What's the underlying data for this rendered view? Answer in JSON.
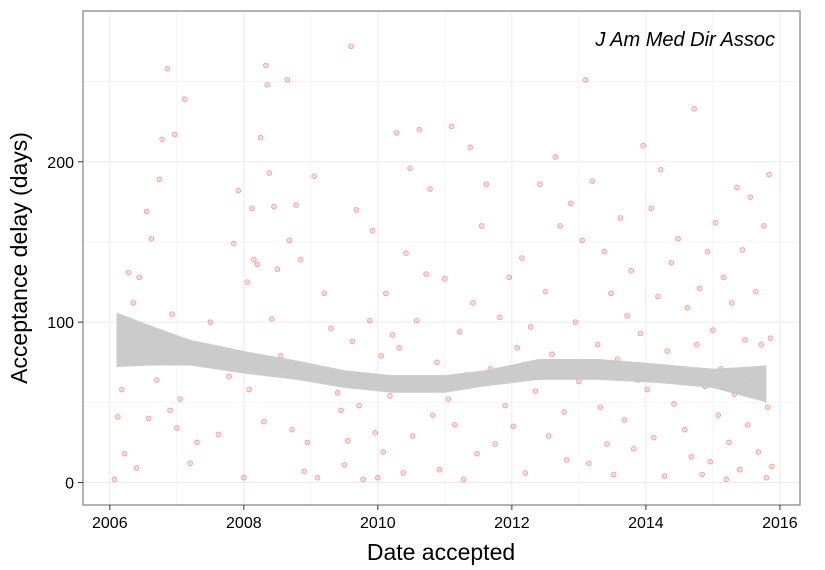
{
  "chart_data": {
    "type": "scatter",
    "annotation": "J Am Med Dir Assoc",
    "xlabel": "Date accepted",
    "ylabel": "Acceptance delay (days)",
    "xlim": [
      2005.6,
      2016.3
    ],
    "ylim": [
      -14,
      294
    ],
    "x_ticks": [
      2006,
      2008,
      2010,
      2012,
      2014,
      2016
    ],
    "x_tick_labels": [
      "2006",
      "2008",
      "2010",
      "2012",
      "2014",
      "2016"
    ],
    "y_ticks": [
      0,
      100,
      200
    ],
    "y_tick_labels": [
      "0",
      "100",
      "200"
    ],
    "grid": true,
    "legend": "none",
    "point_color": "#e8463d",
    "point_opacity": 0.2,
    "band_color": "#c8c8c8",
    "smooth_band": {
      "x": [
        2006.1,
        2006.6,
        2007.2,
        2008.0,
        2008.8,
        2009.5,
        2010.2,
        2011.0,
        2011.6,
        2012.4,
        2013.3,
        2014.2,
        2015.0,
        2015.8
      ],
      "lower": [
        72,
        73,
        73,
        68,
        64,
        59,
        56,
        56,
        60,
        64,
        64,
        62,
        59,
        50
      ],
      "upper": [
        106,
        98,
        89,
        82,
        76,
        70,
        67,
        67,
        70,
        77,
        77,
        74,
        71,
        73
      ]
    },
    "points": [
      [
        2006.07,
        2
      ],
      [
        2006.12,
        41
      ],
      [
        2006.18,
        58
      ],
      [
        2006.22,
        18
      ],
      [
        2006.28,
        131
      ],
      [
        2006.35,
        112
      ],
      [
        2006.4,
        9
      ],
      [
        2006.44,
        128
      ],
      [
        2006.48,
        81
      ],
      [
        2006.55,
        169
      ],
      [
        2006.58,
        40
      ],
      [
        2006.62,
        152
      ],
      [
        2006.66,
        94
      ],
      [
        2006.7,
        64
      ],
      [
        2006.74,
        189
      ],
      [
        2006.78,
        214
      ],
      [
        2006.82,
        76
      ],
      [
        2006.86,
        258
      ],
      [
        2006.9,
        45
      ],
      [
        2006.93,
        105
      ],
      [
        2006.97,
        217
      ],
      [
        2007.0,
        34
      ],
      [
        2007.05,
        52
      ],
      [
        2007.12,
        239
      ],
      [
        2007.2,
        12
      ],
      [
        2007.3,
        25
      ],
      [
        2007.5,
        100
      ],
      [
        2007.62,
        30
      ],
      [
        2007.78,
        66
      ],
      [
        2007.85,
        149
      ],
      [
        2007.92,
        182
      ],
      [
        2008.0,
        3
      ],
      [
        2008.05,
        125
      ],
      [
        2008.08,
        58
      ],
      [
        2008.12,
        171
      ],
      [
        2008.15,
        139
      ],
      [
        2008.2,
        136
      ],
      [
        2008.25,
        215
      ],
      [
        2008.3,
        38
      ],
      [
        2008.33,
        260
      ],
      [
        2008.35,
        248
      ],
      [
        2008.38,
        193
      ],
      [
        2008.42,
        102
      ],
      [
        2008.45,
        172
      ],
      [
        2008.5,
        133
      ],
      [
        2008.55,
        79
      ],
      [
        2008.6,
        71
      ],
      [
        2008.65,
        251
      ],
      [
        2008.68,
        151
      ],
      [
        2008.72,
        33
      ],
      [
        2008.78,
        173
      ],
      [
        2008.85,
        139
      ],
      [
        2008.9,
        7
      ],
      [
        2008.95,
        25
      ],
      [
        2009.05,
        191
      ],
      [
        2009.1,
        3
      ],
      [
        2009.2,
        118
      ],
      [
        2009.3,
        96
      ],
      [
        2009.35,
        69
      ],
      [
        2009.4,
        56
      ],
      [
        2009.45,
        45
      ],
      [
        2009.5,
        11
      ],
      [
        2009.55,
        26
      ],
      [
        2009.6,
        272
      ],
      [
        2009.62,
        88
      ],
      [
        2009.68,
        170
      ],
      [
        2009.72,
        48
      ],
      [
        2009.78,
        2
      ],
      [
        2009.82,
        66
      ],
      [
        2009.88,
        101
      ],
      [
        2009.92,
        157
      ],
      [
        2009.96,
        31
      ],
      [
        2010.0,
        3
      ],
      [
        2010.05,
        79
      ],
      [
        2010.08,
        19
      ],
      [
        2010.12,
        118
      ],
      [
        2010.18,
        54
      ],
      [
        2010.22,
        92
      ],
      [
        2010.28,
        218
      ],
      [
        2010.32,
        84
      ],
      [
        2010.38,
        6
      ],
      [
        2010.42,
        143
      ],
      [
        2010.48,
        196
      ],
      [
        2010.52,
        29
      ],
      [
        2010.58,
        101
      ],
      [
        2010.62,
        220
      ],
      [
        2010.66,
        62
      ],
      [
        2010.72,
        130
      ],
      [
        2010.78,
        183
      ],
      [
        2010.82,
        42
      ],
      [
        2010.88,
        75
      ],
      [
        2010.92,
        8
      ],
      [
        2011.0,
        127
      ],
      [
        2011.05,
        52
      ],
      [
        2011.1,
        222
      ],
      [
        2011.15,
        36
      ],
      [
        2011.22,
        94
      ],
      [
        2011.28,
        2
      ],
      [
        2011.32,
        67
      ],
      [
        2011.38,
        209
      ],
      [
        2011.42,
        112
      ],
      [
        2011.48,
        18
      ],
      [
        2011.55,
        160
      ],
      [
        2011.62,
        186
      ],
      [
        2011.68,
        71
      ],
      [
        2011.75,
        24
      ],
      [
        2011.82,
        103
      ],
      [
        2011.9,
        48
      ],
      [
        2011.96,
        128
      ],
      [
        2012.02,
        35
      ],
      [
        2012.08,
        84
      ],
      [
        2012.15,
        140
      ],
      [
        2012.2,
        6
      ],
      [
        2012.28,
        97
      ],
      [
        2012.35,
        57
      ],
      [
        2012.42,
        186
      ],
      [
        2012.5,
        119
      ],
      [
        2012.55,
        29
      ],
      [
        2012.6,
        80
      ],
      [
        2012.65,
        203
      ],
      [
        2012.72,
        160
      ],
      [
        2012.78,
        44
      ],
      [
        2012.82,
        14
      ],
      [
        2012.88,
        174
      ],
      [
        2012.95,
        100
      ],
      [
        2013.0,
        63
      ],
      [
        2013.05,
        151
      ],
      [
        2013.1,
        251
      ],
      [
        2013.15,
        12
      ],
      [
        2013.2,
        188
      ],
      [
        2013.28,
        86
      ],
      [
        2013.32,
        47
      ],
      [
        2013.38,
        144
      ],
      [
        2013.42,
        24
      ],
      [
        2013.48,
        118
      ],
      [
        2013.52,
        5
      ],
      [
        2013.58,
        77
      ],
      [
        2013.62,
        165
      ],
      [
        2013.68,
        39
      ],
      [
        2013.72,
        104
      ],
      [
        2013.78,
        132
      ],
      [
        2013.82,
        21
      ],
      [
        2013.88,
        64
      ],
      [
        2013.92,
        93
      ],
      [
        2013.96,
        210
      ],
      [
        2014.02,
        58
      ],
      [
        2014.08,
        171
      ],
      [
        2014.12,
        28
      ],
      [
        2014.18,
        116
      ],
      [
        2014.22,
        195
      ],
      [
        2014.28,
        4
      ],
      [
        2014.32,
        82
      ],
      [
        2014.38,
        137
      ],
      [
        2014.42,
        49
      ],
      [
        2014.48,
        152
      ],
      [
        2014.52,
        67
      ],
      [
        2014.58,
        33
      ],
      [
        2014.62,
        109
      ],
      [
        2014.68,
        16
      ],
      [
        2014.72,
        233
      ],
      [
        2014.76,
        86
      ],
      [
        2014.8,
        121
      ],
      [
        2014.84,
        5
      ],
      [
        2014.88,
        60
      ],
      [
        2014.92,
        144
      ],
      [
        2014.96,
        13
      ],
      [
        2015.0,
        95
      ],
      [
        2015.04,
        162
      ],
      [
        2015.08,
        42
      ],
      [
        2015.12,
        71
      ],
      [
        2015.16,
        128
      ],
      [
        2015.2,
        2
      ],
      [
        2015.24,
        25
      ],
      [
        2015.28,
        112
      ],
      [
        2015.32,
        55
      ],
      [
        2015.36,
        184
      ],
      [
        2015.4,
        8
      ],
      [
        2015.44,
        145
      ],
      [
        2015.48,
        89
      ],
      [
        2015.52,
        36
      ],
      [
        2015.56,
        178
      ],
      [
        2015.6,
        64
      ],
      [
        2015.64,
        119
      ],
      [
        2015.68,
        19
      ],
      [
        2015.72,
        86
      ],
      [
        2015.76,
        160
      ],
      [
        2015.8,
        3
      ],
      [
        2015.82,
        47
      ],
      [
        2015.84,
        192
      ],
      [
        2015.86,
        90
      ],
      [
        2015.88,
        10
      ]
    ]
  }
}
